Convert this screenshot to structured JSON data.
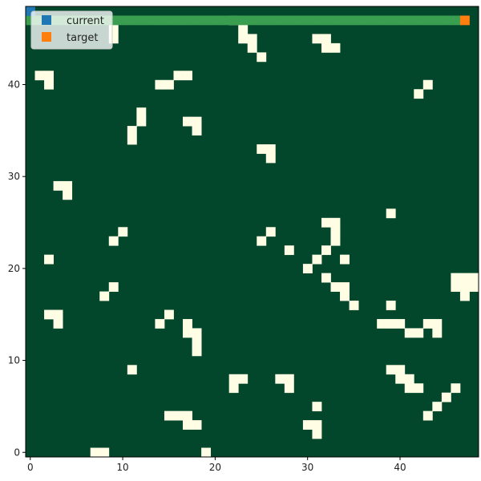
{
  "chart_data": {
    "type": "heatmap",
    "title": "",
    "xlabel": "",
    "ylabel": "",
    "xlim": [
      -0.5,
      48.5
    ],
    "ylim": [
      -0.5,
      48.5
    ],
    "x_ticks": [
      0,
      10,
      20,
      30,
      40
    ],
    "y_ticks": [
      0,
      10,
      20,
      30,
      40
    ],
    "grid_size": [
      49,
      49
    ],
    "colors": {
      "free": "#02462C",
      "obstacle": "#FFFDE3",
      "path": "#3A9E50",
      "current": "#1F77B4",
      "target": "#FF7F0E",
      "background": "#FFFDE3",
      "axis": "#000000"
    },
    "legend": {
      "position": "top-left",
      "entries": [
        {
          "label": "current",
          "color": "#1F77B4"
        },
        {
          "label": "target",
          "color": "#FF7F0E"
        }
      ]
    },
    "current": {
      "x": 0,
      "y": 48
    },
    "target": {
      "x": 47,
      "y": 47
    },
    "path": {
      "y": 47,
      "x_start": 0,
      "x_end": 46
    },
    "obstacles": [
      [
        7,
        0
      ],
      [
        8,
        0
      ],
      [
        19,
        0
      ],
      [
        31,
        2
      ],
      [
        30,
        3
      ],
      [
        31,
        3
      ],
      [
        17,
        3
      ],
      [
        18,
        3
      ],
      [
        15,
        4
      ],
      [
        16,
        4
      ],
      [
        17,
        4
      ],
      [
        43,
        4
      ],
      [
        44,
        5
      ],
      [
        31,
        5
      ],
      [
        45,
        6
      ],
      [
        46,
        7
      ],
      [
        22,
        7
      ],
      [
        28,
        7
      ],
      [
        41,
        7
      ],
      [
        42,
        7
      ],
      [
        22,
        8
      ],
      [
        23,
        8
      ],
      [
        27,
        8
      ],
      [
        28,
        8
      ],
      [
        40,
        8
      ],
      [
        41,
        8
      ],
      [
        11,
        9
      ],
      [
        39,
        9
      ],
      [
        40,
        9
      ],
      [
        18,
        11
      ],
      [
        18,
        12
      ],
      [
        17,
        13
      ],
      [
        18,
        13
      ],
      [
        41,
        13
      ],
      [
        42,
        13
      ],
      [
        44,
        13
      ],
      [
        17,
        14
      ],
      [
        14,
        14
      ],
      [
        38,
        14
      ],
      [
        39,
        14
      ],
      [
        40,
        14
      ],
      [
        43,
        14
      ],
      [
        44,
        14
      ],
      [
        3,
        14
      ],
      [
        2,
        15
      ],
      [
        3,
        15
      ],
      [
        15,
        15
      ],
      [
        35,
        16
      ],
      [
        39,
        16
      ],
      [
        8,
        17
      ],
      [
        34,
        17
      ],
      [
        47,
        17
      ],
      [
        9,
        18
      ],
      [
        33,
        18
      ],
      [
        34,
        18
      ],
      [
        46,
        18
      ],
      [
        47,
        18
      ],
      [
        48,
        18
      ],
      [
        32,
        19
      ],
      [
        46,
        19
      ],
      [
        47,
        19
      ],
      [
        48,
        19
      ],
      [
        30,
        20
      ],
      [
        2,
        21
      ],
      [
        31,
        21
      ],
      [
        34,
        21
      ],
      [
        28,
        22
      ],
      [
        32,
        22
      ],
      [
        9,
        23
      ],
      [
        25,
        23
      ],
      [
        33,
        23
      ],
      [
        10,
        24
      ],
      [
        26,
        24
      ],
      [
        33,
        24
      ],
      [
        32,
        25
      ],
      [
        33,
        25
      ],
      [
        39,
        26
      ],
      [
        4,
        28
      ],
      [
        3,
        29
      ],
      [
        4,
        29
      ],
      [
        26,
        32
      ],
      [
        25,
        33
      ],
      [
        26,
        33
      ],
      [
        11,
        34
      ],
      [
        11,
        35
      ],
      [
        18,
        35
      ],
      [
        12,
        36
      ],
      [
        17,
        36
      ],
      [
        18,
        36
      ],
      [
        12,
        37
      ],
      [
        42,
        39
      ],
      [
        43,
        40
      ],
      [
        2,
        40
      ],
      [
        14,
        40
      ],
      [
        15,
        40
      ],
      [
        1,
        41
      ],
      [
        2,
        41
      ],
      [
        16,
        41
      ],
      [
        17,
        41
      ],
      [
        25,
        43
      ],
      [
        24,
        44
      ],
      [
        32,
        44
      ],
      [
        33,
        44
      ],
      [
        23,
        45
      ],
      [
        24,
        45
      ],
      [
        31,
        45
      ],
      [
        32,
        45
      ],
      [
        9,
        45
      ],
      [
        23,
        46
      ],
      [
        22,
        47
      ],
      [
        9,
        46
      ]
    ]
  }
}
